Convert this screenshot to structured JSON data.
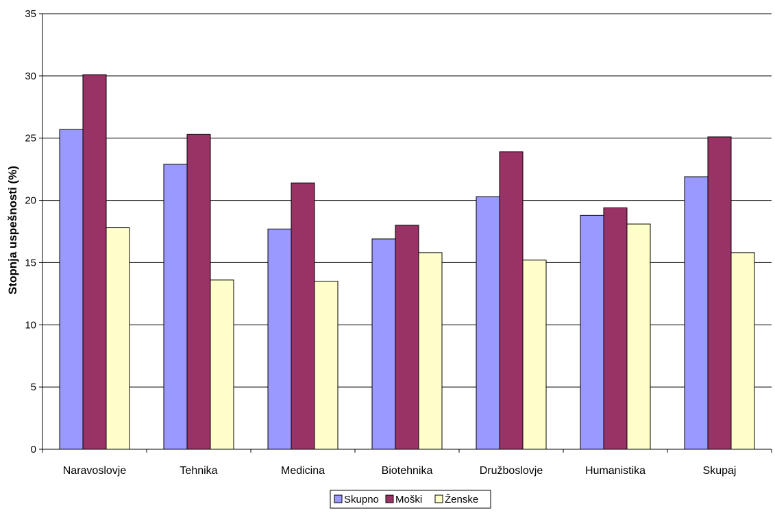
{
  "chart_data": {
    "type": "bar",
    "title": "",
    "xlabel": "",
    "ylabel": "Stopnja uspešnosti (%)",
    "ylim": [
      0,
      35
    ],
    "yticks": [
      0,
      5,
      10,
      15,
      20,
      25,
      30,
      35
    ],
    "grid": true,
    "legend_position": "bottom",
    "categories": [
      "Naravoslovje",
      "Tehnika",
      "Medicina",
      "Biotehnika",
      "Družboslovje",
      "Humanistika",
      "Skupaj"
    ],
    "series": [
      {
        "name": "Skupno",
        "color": "#9999FF",
        "values": [
          25.7,
          22.9,
          17.7,
          16.9,
          20.3,
          18.8,
          21.9
        ]
      },
      {
        "name": "Moški",
        "color": "#993366",
        "values": [
          30.1,
          25.3,
          21.4,
          18.0,
          23.9,
          19.4,
          25.1
        ]
      },
      {
        "name": "Ženske",
        "color": "#FFFFCC",
        "values": [
          17.8,
          13.6,
          13.5,
          15.8,
          15.2,
          18.1,
          15.8
        ]
      }
    ]
  }
}
